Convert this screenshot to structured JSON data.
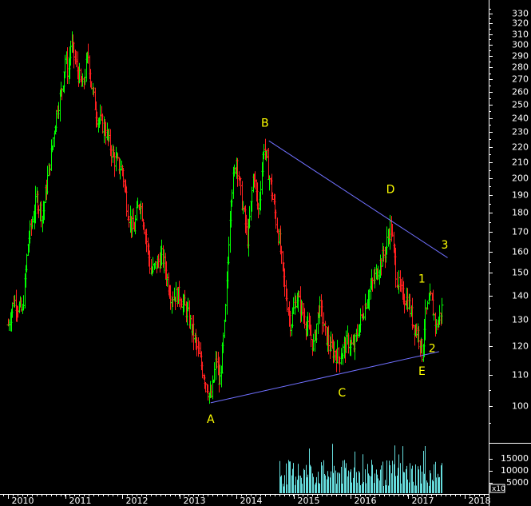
{
  "chart_data": {
    "type": "ohlc",
    "title": "",
    "x_axis": {
      "ticks": [
        "2010",
        "2011",
        "2012",
        "2013",
        "2014",
        "2015",
        "2016",
        "2017",
        "2018"
      ]
    },
    "y_axis": {
      "scale": "log",
      "ticks": [
        100,
        110,
        120,
        130,
        140,
        150,
        160,
        170,
        180,
        190,
        200,
        210,
        220,
        230,
        240,
        250,
        260,
        270,
        280,
        290,
        300,
        310,
        320,
        330
      ],
      "range": [
        93,
        345
      ]
    },
    "volume_axis": {
      "ticks": [
        "15000",
        "10000",
        "5000"
      ],
      "multiplier_label": "x10"
    },
    "bar_colors": {
      "up": "#00ff00",
      "down": "#ff2020",
      "volume": "#66dddd",
      "trendline": "#7070ff",
      "wave_label": "#ffff00"
    },
    "price_path": [
      [
        "2010.0",
        128
      ],
      [
        "2010.1",
        138
      ],
      [
        "2010.25",
        133
      ],
      [
        "2010.35",
        165
      ],
      [
        "2010.5",
        188
      ],
      [
        "2010.6",
        178
      ],
      [
        "2010.75",
        215
      ],
      [
        "2010.85",
        245
      ],
      [
        "2010.95",
        265
      ],
      [
        "2011.0",
        288
      ],
      [
        "2011.05",
        275
      ],
      [
        "2011.1",
        302
      ],
      [
        "2011.2",
        280
      ],
      [
        "2011.3",
        262
      ],
      [
        "2011.4",
        292
      ],
      [
        "2011.45",
        268
      ],
      [
        "2011.55",
        242
      ],
      [
        "2011.7",
        232
      ],
      [
        "2011.85",
        212
      ],
      [
        "2012.0",
        205
      ],
      [
        "2012.1",
        180
      ],
      [
        "2012.2",
        170
      ],
      [
        "2012.3",
        188
      ],
      [
        "2012.4",
        170
      ],
      [
        "2012.5",
        150
      ],
      [
        "2012.7",
        158
      ],
      [
        "2012.85",
        140
      ],
      [
        "2013.0",
        140
      ],
      [
        "2013.15",
        132
      ],
      [
        "2013.3",
        120
      ],
      [
        "2013.4",
        112
      ],
      [
        "2013.5",
        105
      ],
      [
        "2013.55",
        102
      ],
      [
        "2013.65",
        116
      ],
      [
        "2013.7",
        106
      ],
      [
        "2013.8",
        130
      ],
      [
        "2013.9",
        190
      ],
      [
        "2014.0",
        212
      ],
      [
        "2014.1",
        185
      ],
      [
        "2014.2",
        165
      ],
      [
        "2014.3",
        205
      ],
      [
        "2014.38",
        180
      ],
      [
        "2014.48",
        222
      ],
      [
        "2014.6",
        195
      ],
      [
        "2014.75",
        165
      ],
      [
        "2014.85",
        142
      ],
      [
        "2014.95",
        128
      ],
      [
        "2015.05",
        140
      ],
      [
        "2015.2",
        130
      ],
      [
        "2015.35",
        120
      ],
      [
        "2015.45",
        136
      ],
      [
        "2015.55",
        125
      ],
      [
        "2015.65",
        119
      ],
      [
        "2015.8",
        116
      ],
      [
        "2015.95",
        122
      ],
      [
        "2016.05",
        119
      ],
      [
        "2016.15",
        128
      ],
      [
        "2016.3",
        140
      ],
      [
        "2016.45",
        150
      ],
      [
        "2016.6",
        160
      ],
      [
        "2016.7",
        174
      ],
      [
        "2016.8",
        148
      ],
      [
        "2016.9",
        140
      ],
      [
        "2017.0",
        138
      ],
      [
        "2017.1",
        128
      ],
      [
        "2017.2",
        124
      ],
      [
        "2017.25",
        117
      ],
      [
        "2017.3",
        131
      ],
      [
        "2017.4",
        139
      ],
      [
        "2017.5",
        127
      ],
      [
        "2017.6",
        135
      ]
    ],
    "lines": [
      {
        "name": "upper",
        "from": [
          "2014.57",
          224
        ],
        "to": [
          "2017.7",
          157
        ]
      },
      {
        "name": "lower",
        "from": [
          "2013.55",
          101
        ],
        "to": [
          "2017.55",
          118
        ]
      }
    ],
    "annotations": [
      {
        "text": "A",
        "x": "2013.55",
        "y": 96
      },
      {
        "text": "B",
        "x": "2014.5",
        "y": 236
      },
      {
        "text": "C",
        "x": "2015.85",
        "y": 104
      },
      {
        "text": "D",
        "x": "2016.7",
        "y": 193
      },
      {
        "text": "3",
        "x": "2017.65",
        "y": 163
      },
      {
        "text": "1",
        "x": "2017.25",
        "y": 147
      },
      {
        "text": "2",
        "x": "2017.43",
        "y": 119
      },
      {
        "text": "E",
        "x": "2017.25",
        "y": 111
      }
    ]
  }
}
